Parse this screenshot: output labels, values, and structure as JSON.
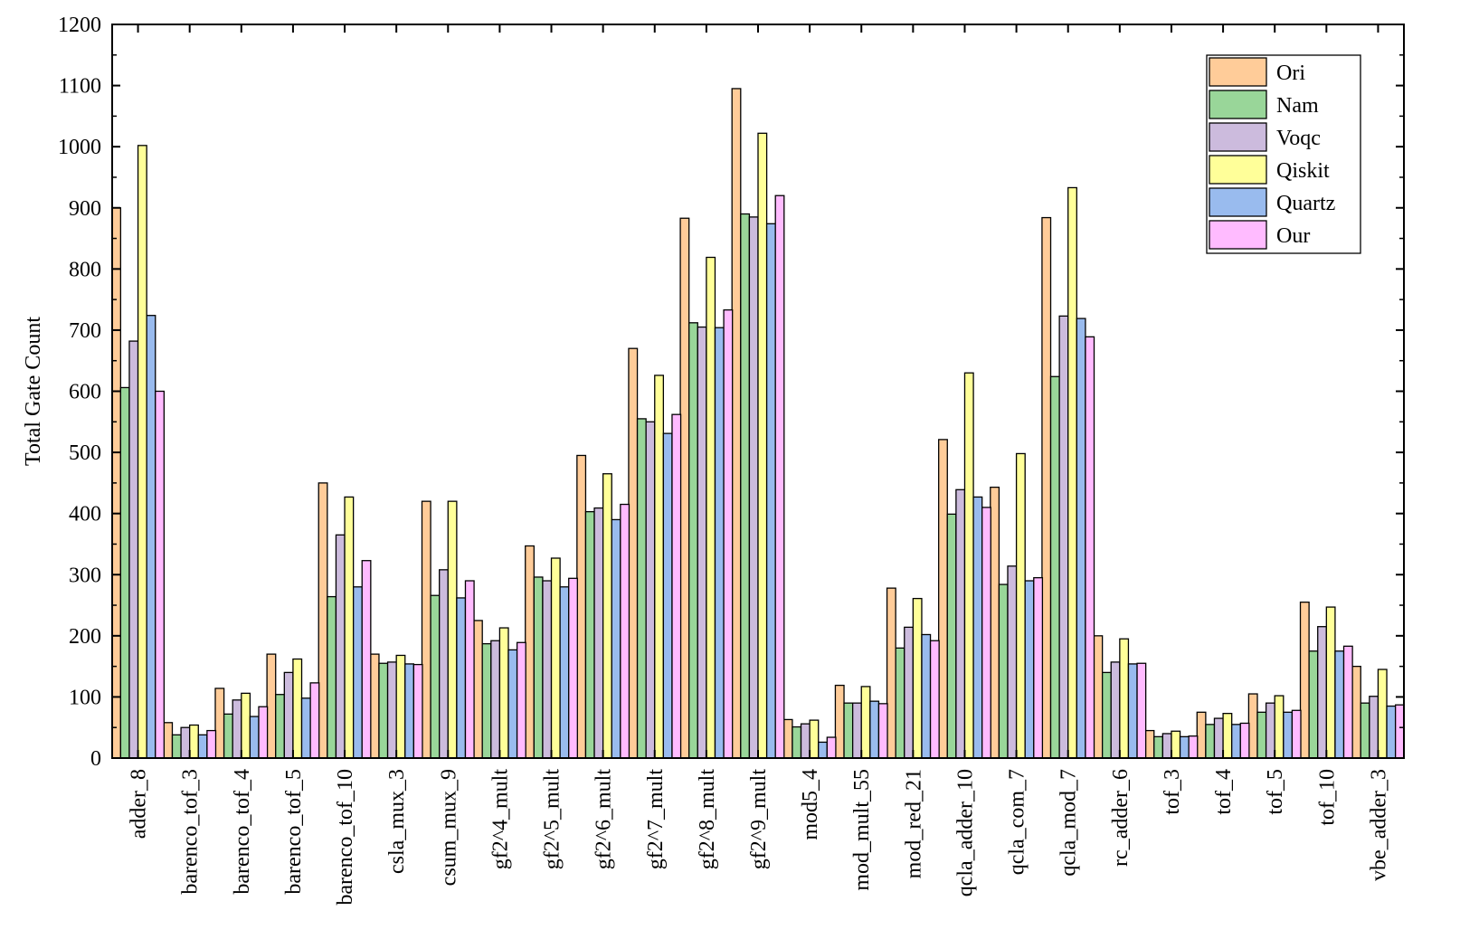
{
  "chart_data": {
    "type": "bar",
    "title": "",
    "xlabel": "",
    "ylabel": "Total Gate Count",
    "ylim": [
      0,
      1200
    ],
    "yticks": [
      0,
      100,
      200,
      300,
      400,
      500,
      600,
      700,
      800,
      900,
      1000,
      1100,
      1200
    ],
    "grid": false,
    "legend_position": "top-right",
    "categories": [
      "adder_8",
      "barenco_tof_3",
      "barenco_tof_4",
      "barenco_tof_5",
      "barenco_tof_10",
      "csla_mux_3",
      "csum_mux_9",
      "gf2^4_mult",
      "gf2^5_mult",
      "gf2^6_mult",
      "gf2^7_mult",
      "gf2^8_mult",
      "gf2^9_mult",
      "mod5_4",
      "mod_mult_55",
      "mod_red_21",
      "qcla_adder_10",
      "qcla_com_7",
      "qcla_mod_7",
      "rc_adder_6",
      "tof_3",
      "tof_4",
      "tof_5",
      "tof_10",
      "vbe_adder_3"
    ],
    "series": [
      {
        "name": "Ori",
        "color": "#FFCC99",
        "values": [
          900,
          58,
          114,
          170,
          450,
          170,
          420,
          225,
          347,
          495,
          670,
          883,
          1095,
          63,
          119,
          278,
          521,
          443,
          884,
          200,
          45,
          75,
          105,
          255,
          150
        ]
      },
      {
        "name": "Nam",
        "color": "#99D699",
        "values": [
          606,
          38,
          72,
          104,
          264,
          155,
          266,
          187,
          296,
          403,
          555,
          712,
          890,
          51,
          90,
          180,
          399,
          284,
          624,
          140,
          35,
          55,
          75,
          175,
          90
        ]
      },
      {
        "name": "Voqc",
        "color": "#CCBBDD",
        "values": [
          682,
          50,
          95,
          140,
          365,
          157,
          308,
          192,
          290,
          409,
          550,
          705,
          885,
          56,
          90,
          214,
          439,
          314,
          723,
          157,
          40,
          65,
          90,
          215,
          101
        ]
      },
      {
        "name": "Qiskit",
        "color": "#FFFF99",
        "values": [
          1002,
          54,
          106,
          162,
          427,
          168,
          420,
          213,
          327,
          465,
          626,
          819,
          1022,
          62,
          117,
          261,
          630,
          498,
          933,
          195,
          44,
          73,
          102,
          247,
          145
        ]
      },
      {
        "name": "Quartz",
        "color": "#99BBEE",
        "values": [
          724,
          38,
          68,
          98,
          280,
          154,
          262,
          177,
          280,
          390,
          531,
          704,
          874,
          26,
          93,
          202,
          427,
          290,
          719,
          154,
          35,
          55,
          75,
          175,
          85
        ]
      },
      {
        "name": "Our",
        "color": "#FFBBFF",
        "values": [
          600,
          45,
          84,
          123,
          323,
          153,
          290,
          189,
          294,
          415,
          562,
          733,
          920,
          34,
          89,
          192,
          410,
          295,
          689,
          155,
          36,
          57,
          78,
          183,
          87
        ]
      }
    ]
  }
}
